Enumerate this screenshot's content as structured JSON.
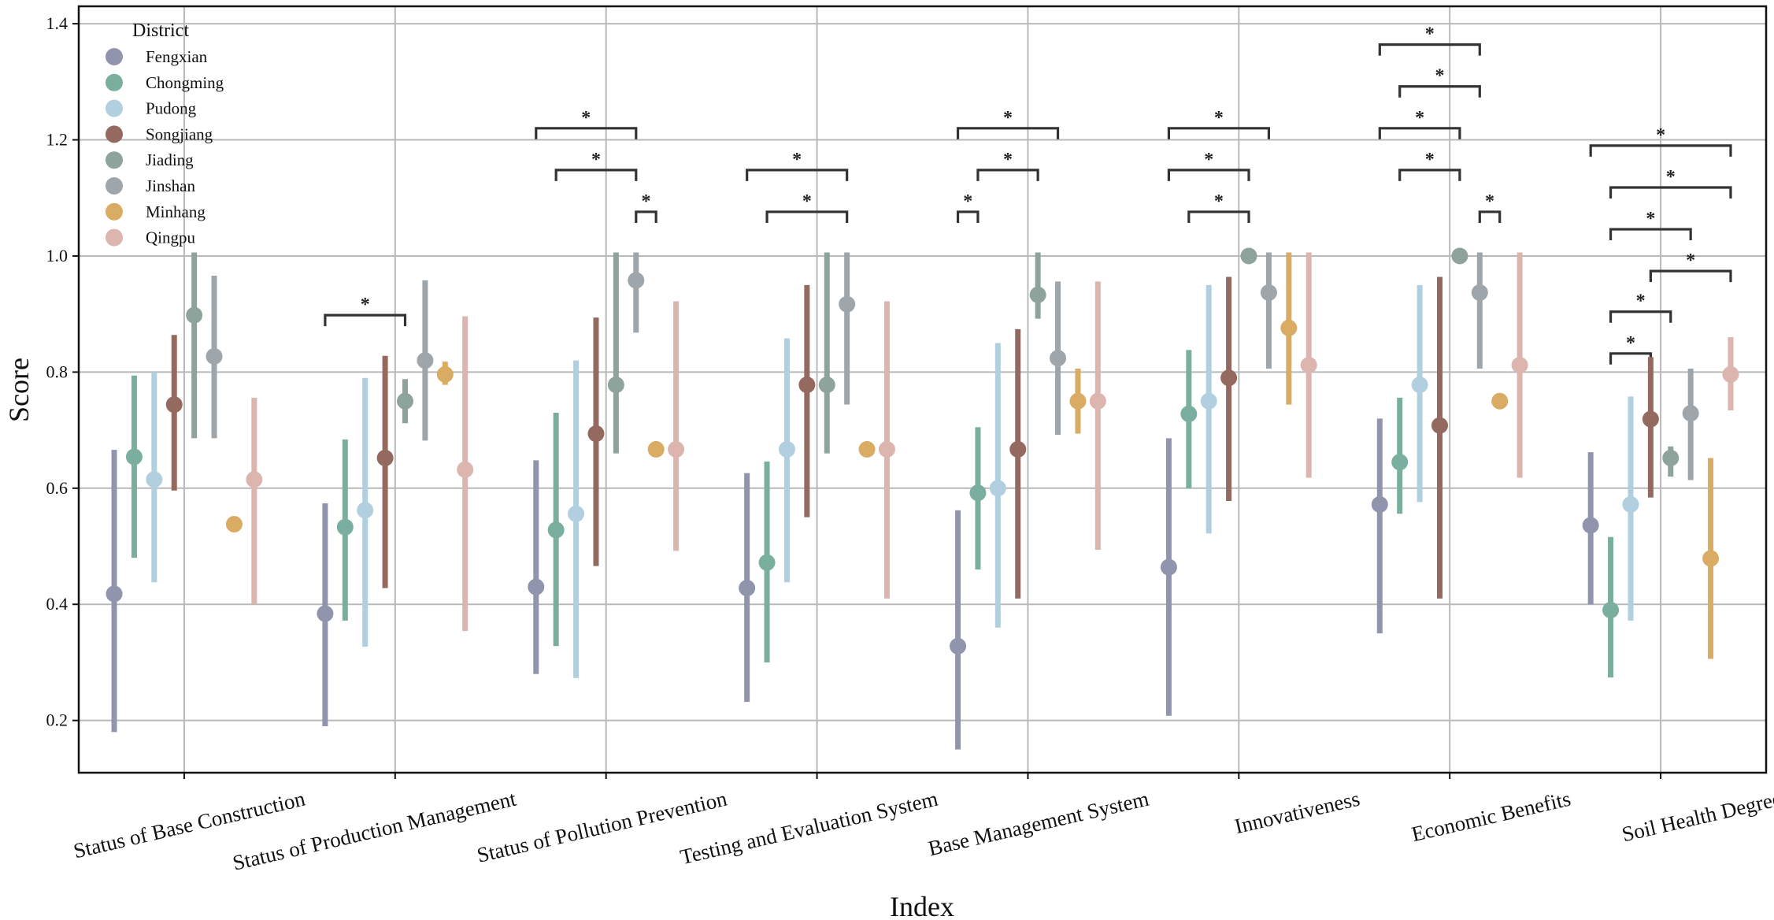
{
  "chart_data": {
    "type": "pointrange",
    "xlabel": "Index",
    "ylabel": "Score",
    "ylim": [
      0.11,
      1.43
    ],
    "yticks": [
      "0.2",
      "0.4",
      "0.6",
      "0.8",
      "1.0",
      "1.2",
      "1.4"
    ],
    "grid": true,
    "legend_title": "District",
    "legend_position": "top-left",
    "categories": [
      "Status of Base Construction",
      "Status of Production Management",
      "Status of Pollution Prevention",
      "Testing and Evaluation System",
      "Base Management System",
      "Innovativeness",
      "Economic Benefits",
      "Soil Health Degree"
    ],
    "series": [
      {
        "name": "Fengxian",
        "color": "#9095ad",
        "mean": [
          0.418,
          0.384,
          0.43,
          0.428,
          0.328,
          0.464,
          0.572,
          0.536
        ],
        "low": [
          0.18,
          0.19,
          0.28,
          0.232,
          0.15,
          0.208,
          0.35,
          0.4
        ],
        "high": [
          0.666,
          0.574,
          0.648,
          0.626,
          0.562,
          0.686,
          0.72,
          0.662
        ]
      },
      {
        "name": "Chongming",
        "color": "#7aaf9f",
        "mean": [
          0.654,
          0.533,
          0.528,
          0.472,
          0.592,
          0.728,
          0.645,
          0.39
        ],
        "low": [
          0.48,
          0.372,
          0.328,
          0.3,
          0.46,
          0.6,
          0.556,
          0.274
        ],
        "high": [
          0.794,
          0.684,
          0.73,
          0.646,
          0.705,
          0.838,
          0.756,
          0.516
        ]
      },
      {
        "name": " Pudong",
        "color": "#b2cfe0",
        "mean": [
          0.615,
          0.562,
          0.556,
          0.667,
          0.6,
          0.75,
          0.778,
          0.572
        ],
        "low": [
          0.438,
          0.327,
          0.273,
          0.438,
          0.36,
          0.522,
          0.576,
          0.372
        ],
        "high": [
          0.8,
          0.79,
          0.82,
          0.858,
          0.85,
          0.95,
          0.95,
          0.758
        ]
      },
      {
        "name": "Songjiang",
        "color": "#94695f",
        "mean": [
          0.744,
          0.652,
          0.694,
          0.778,
          0.667,
          0.79,
          0.708,
          0.719
        ],
        "low": [
          0.596,
          0.428,
          0.466,
          0.55,
          0.41,
          0.578,
          0.41,
          0.584
        ],
        "high": [
          0.864,
          0.828,
          0.894,
          0.95,
          0.874,
          0.964,
          0.964,
          0.826
        ]
      },
      {
        "name": "Jiading",
        "color": "#8ea39b",
        "mean": [
          0.898,
          0.75,
          0.778,
          0.778,
          0.933,
          1.0,
          1.0,
          0.652
        ],
        "low": [
          0.686,
          0.712,
          0.66,
          0.66,
          0.892,
          1.0,
          1.0,
          0.62
        ],
        "high": [
          1.006,
          0.788,
          1.006,
          1.006,
          1.006,
          1.0,
          1.0,
          0.672
        ]
      },
      {
        "name": "Jinshan",
        "color": "#9fa6ab",
        "mean": [
          0.827,
          0.82,
          0.958,
          0.917,
          0.824,
          0.937,
          0.937,
          0.729
        ],
        "low": [
          0.686,
          0.682,
          0.868,
          0.744,
          0.692,
          0.806,
          0.806,
          0.614
        ],
        "high": [
          0.966,
          0.958,
          1.006,
          1.006,
          0.956,
          1.006,
          1.006,
          0.806
        ]
      },
      {
        "name": "Minhang",
        "color": "#d9ab63",
        "mean": [
          0.538,
          0.796,
          0.667,
          0.667,
          0.75,
          0.876,
          0.75,
          0.479
        ],
        "low": [
          0.538,
          0.778,
          0.667,
          0.667,
          0.694,
          0.744,
          0.75,
          0.306
        ],
        "high": [
          0.538,
          0.818,
          0.667,
          0.667,
          0.806,
          1.006,
          0.75,
          0.652
        ]
      },
      {
        "name": "Qingpu",
        "color": "#dbb5ae",
        "mean": [
          0.615,
          0.632,
          0.667,
          0.667,
          0.75,
          0.812,
          0.812,
          0.796
        ],
        "low": [
          0.4,
          0.354,
          0.492,
          0.41,
          0.494,
          0.618,
          0.618,
          0.734
        ],
        "high": [
          0.756,
          0.896,
          0.922,
          0.922,
          0.956,
          1.006,
          1.006,
          0.86
        ]
      }
    ],
    "annotations": [
      {
        "category": 1,
        "from": 0,
        "to": 4,
        "y": 0.898,
        "text": "*"
      },
      {
        "category": 2,
        "from": 0,
        "to": 5,
        "y": 1.22,
        "text": "*"
      },
      {
        "category": 2,
        "from": 1,
        "to": 5,
        "y": 1.148,
        "text": "*"
      },
      {
        "category": 2,
        "from": 5,
        "to": 6,
        "y": 1.076,
        "text": "*"
      },
      {
        "category": 3,
        "from": 0,
        "to": 5,
        "y": 1.148,
        "text": "*"
      },
      {
        "category": 3,
        "from": 1,
        "to": 5,
        "y": 1.076,
        "text": "*"
      },
      {
        "category": 4,
        "from": 0,
        "to": 1,
        "y": 1.076,
        "text": "*"
      },
      {
        "category": 4,
        "from": 0,
        "to": 5,
        "y": 1.22,
        "text": "*"
      },
      {
        "category": 4,
        "from": 1,
        "to": 4,
        "y": 1.148,
        "text": "*"
      },
      {
        "category": 5,
        "from": 0,
        "to": 5,
        "y": 1.22,
        "text": "*"
      },
      {
        "category": 5,
        "from": 0,
        "to": 4,
        "y": 1.148,
        "text": "*"
      },
      {
        "category": 5,
        "from": 1,
        "to": 4,
        "y": 1.076,
        "text": "*"
      },
      {
        "category": 6,
        "from": 0,
        "to": 5,
        "y": 1.364,
        "text": "*"
      },
      {
        "category": 6,
        "from": 1,
        "to": 5,
        "y": 1.292,
        "text": "*"
      },
      {
        "category": 6,
        "from": 0,
        "to": 4,
        "y": 1.22,
        "text": "*"
      },
      {
        "category": 6,
        "from": 1,
        "to": 4,
        "y": 1.148,
        "text": "*"
      },
      {
        "category": 6,
        "from": 5,
        "to": 6,
        "y": 1.076,
        "text": "*"
      },
      {
        "category": 7,
        "from": 0,
        "to": 7,
        "y": 1.19,
        "text": "*"
      },
      {
        "category": 7,
        "from": 1,
        "to": 7,
        "y": 1.118,
        "text": "*"
      },
      {
        "category": 7,
        "from": 1,
        "to": 5,
        "y": 1.046,
        "text": "*"
      },
      {
        "category": 7,
        "from": 3,
        "to": 7,
        "y": 0.974,
        "text": "*"
      },
      {
        "category": 7,
        "from": 1,
        "to": 4,
        "y": 0.904,
        "text": "*"
      },
      {
        "category": 7,
        "from": 1,
        "to": 3,
        "y": 0.832,
        "text": "*"
      }
    ]
  }
}
